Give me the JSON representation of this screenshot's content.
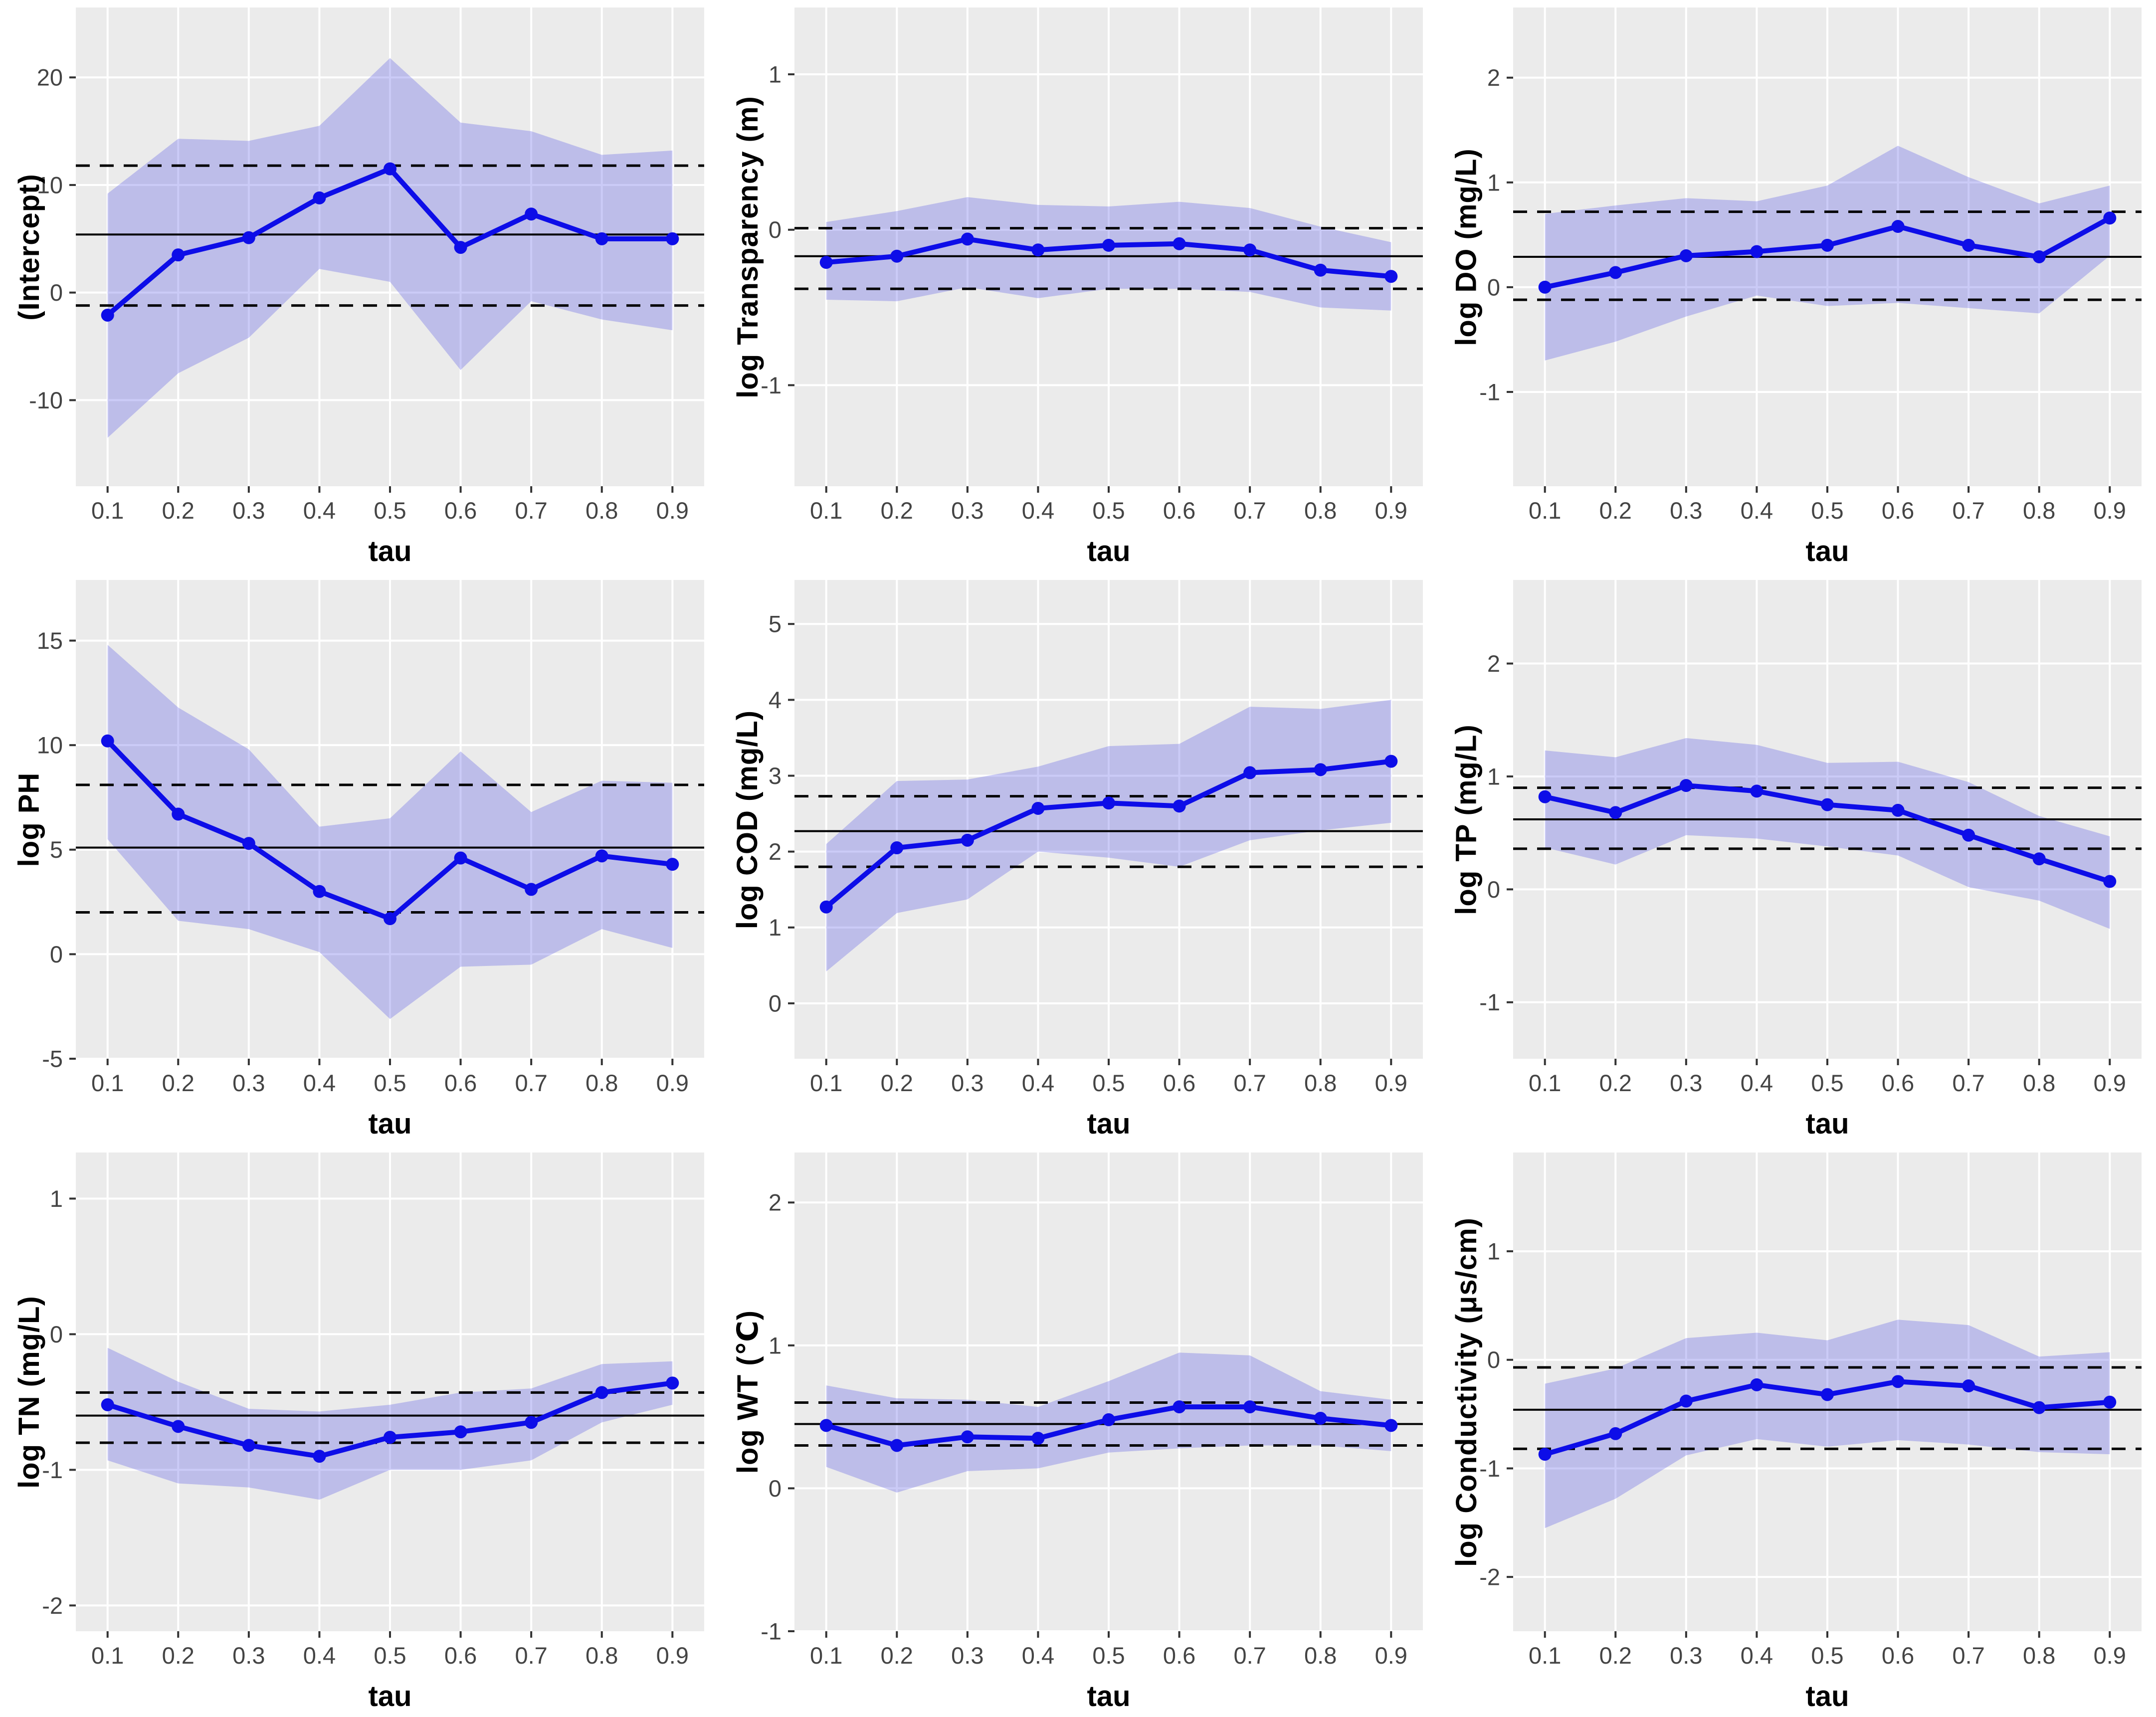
{
  "figure": {
    "description": "3x3 grid of quantile regression coefficient plots versus tau, each with a blue quantile estimate line with points, a light purple confidence band, a solid black OLS reference line and dashed black OLS confidence limits",
    "x_axis_title": "tau"
  },
  "colors": {
    "page_background": "#FFFFFF",
    "panel_background": "#EBEBEB",
    "grid_line": "#FFFFFF",
    "confidence_band": "rgba(82,82,230,0.30)",
    "quantile_line": "#0D0DE8",
    "reference_line": "#000000",
    "tick_mark": "#333333",
    "tick_label": "#444444",
    "axis_title": "#000000"
  },
  "chart_data": [
    {
      "type": "line",
      "ylabel": "(Intercept)",
      "xlabel": "tau",
      "x": [
        0.1,
        0.2,
        0.3,
        0.4,
        0.5,
        0.6,
        0.7,
        0.8,
        0.9
      ],
      "series": [
        {
          "name": "quantile-estimate",
          "values": [
            -2.1,
            3.5,
            5.1,
            8.8,
            11.5,
            4.2,
            7.3,
            5.0,
            5.0
          ]
        },
        {
          "name": "ci-upper",
          "values": [
            9.2,
            14.3,
            14.1,
            15.5,
            21.8,
            15.8,
            15.0,
            12.8,
            13.2
          ]
        },
        {
          "name": "ci-lower",
          "values": [
            -13.5,
            -7.5,
            -4.2,
            2.2,
            1.0,
            -7.2,
            -0.8,
            -2.5,
            -3.5
          ]
        }
      ],
      "ols": {
        "estimate": 5.4,
        "upper": 11.8,
        "lower": -1.2
      },
      "xticks": [
        0.1,
        0.2,
        0.3,
        0.4,
        0.5,
        0.6,
        0.7,
        0.8,
        0.9
      ],
      "yticks": [
        -10,
        0,
        10,
        20
      ],
      "xlim": [
        0.055,
        0.945
      ],
      "ylim": [
        -18,
        26.5
      ],
      "grid": "major",
      "legend": "none"
    },
    {
      "type": "line",
      "ylabel": "log Transparency (m)",
      "xlabel": "tau",
      "x": [
        0.1,
        0.2,
        0.3,
        0.4,
        0.5,
        0.6,
        0.7,
        0.8,
        0.9
      ],
      "series": [
        {
          "name": "quantile-estimate",
          "values": [
            -0.21,
            -0.17,
            -0.06,
            -0.13,
            -0.1,
            -0.09,
            -0.13,
            -0.26,
            -0.3
          ]
        },
        {
          "name": "ci-upper",
          "values": [
            0.05,
            0.12,
            0.21,
            0.16,
            0.15,
            0.18,
            0.14,
            0.02,
            -0.08
          ]
        },
        {
          "name": "ci-lower",
          "values": [
            -0.45,
            -0.46,
            -0.37,
            -0.44,
            -0.38,
            -0.38,
            -0.4,
            -0.5,
            -0.52
          ]
        }
      ],
      "ols": {
        "estimate": -0.17,
        "upper": 0.01,
        "lower": -0.38
      },
      "xticks": [
        0.1,
        0.2,
        0.3,
        0.4,
        0.5,
        0.6,
        0.7,
        0.8,
        0.9
      ],
      "yticks": [
        -1,
        0,
        1
      ],
      "xlim": [
        0.055,
        0.945
      ],
      "ylim": [
        -1.65,
        1.43
      ],
      "grid": "major",
      "legend": "none"
    },
    {
      "type": "line",
      "ylabel": "log DO (mg/L)",
      "xlabel": "tau",
      "x": [
        0.1,
        0.2,
        0.3,
        0.4,
        0.5,
        0.6,
        0.7,
        0.8,
        0.9
      ],
      "series": [
        {
          "name": "quantile-estimate",
          "values": [
            0.0,
            0.14,
            0.3,
            0.34,
            0.4,
            0.58,
            0.4,
            0.29,
            0.66
          ]
        },
        {
          "name": "ci-upper",
          "values": [
            0.7,
            0.78,
            0.85,
            0.82,
            0.97,
            1.35,
            1.05,
            0.8,
            0.97
          ]
        },
        {
          "name": "ci-lower",
          "values": [
            -0.7,
            -0.52,
            -0.28,
            -0.08,
            -0.18,
            -0.15,
            -0.2,
            -0.25,
            0.3
          ]
        }
      ],
      "ols": {
        "estimate": 0.29,
        "upper": 0.72,
        "lower": -0.12
      },
      "xticks": [
        0.1,
        0.2,
        0.3,
        0.4,
        0.5,
        0.6,
        0.7,
        0.8,
        0.9
      ],
      "yticks": [
        -1,
        0,
        1,
        2
      ],
      "xlim": [
        0.055,
        0.945
      ],
      "ylim": [
        -1.9,
        2.67
      ],
      "grid": "major",
      "legend": "none"
    },
    {
      "type": "line",
      "ylabel": "log PH",
      "xlabel": "tau",
      "x": [
        0.1,
        0.2,
        0.3,
        0.4,
        0.5,
        0.6,
        0.7,
        0.8,
        0.9
      ],
      "series": [
        {
          "name": "quantile-estimate",
          "values": [
            10.2,
            6.7,
            5.3,
            3.0,
            1.7,
            4.6,
            3.1,
            4.7,
            4.3
          ]
        },
        {
          "name": "ci-upper",
          "values": [
            14.8,
            11.8,
            9.8,
            6.1,
            6.5,
            9.7,
            6.8,
            8.3,
            8.2
          ]
        },
        {
          "name": "ci-lower",
          "values": [
            5.5,
            1.6,
            1.2,
            0.1,
            -3.1,
            -0.6,
            -0.5,
            1.2,
            0.3
          ]
        }
      ],
      "ols": {
        "estimate": 5.1,
        "upper": 8.1,
        "lower": 2.0
      },
      "xticks": [
        0.1,
        0.2,
        0.3,
        0.4,
        0.5,
        0.6,
        0.7,
        0.8,
        0.9
      ],
      "yticks": [
        -5,
        0,
        5,
        10,
        15
      ],
      "xlim": [
        0.055,
        0.945
      ],
      "ylim": [
        -5,
        17.9
      ],
      "grid": "major",
      "legend": "none"
    },
    {
      "type": "line",
      "ylabel": "log COD (mg/L)",
      "xlabel": "tau",
      "x": [
        0.1,
        0.2,
        0.3,
        0.4,
        0.5,
        0.6,
        0.7,
        0.8,
        0.9
      ],
      "series": [
        {
          "name": "quantile-estimate",
          "values": [
            1.27,
            2.05,
            2.15,
            2.57,
            2.64,
            2.6,
            3.04,
            3.08,
            3.19
          ]
        },
        {
          "name": "ci-upper",
          "values": [
            2.1,
            2.93,
            2.95,
            3.12,
            3.39,
            3.42,
            3.91,
            3.88,
            4.0
          ]
        },
        {
          "name": "ci-lower",
          "values": [
            0.42,
            1.19,
            1.37,
            2.0,
            1.92,
            1.8,
            2.15,
            2.28,
            2.38
          ]
        }
      ],
      "ols": {
        "estimate": 2.27,
        "upper": 2.73,
        "lower": 1.8
      },
      "xticks": [
        0.1,
        0.2,
        0.3,
        0.4,
        0.5,
        0.6,
        0.7,
        0.8,
        0.9
      ],
      "yticks": [
        0,
        1,
        2,
        3,
        4,
        5
      ],
      "xlim": [
        0.055,
        0.945
      ],
      "ylim": [
        -0.73,
        5.58
      ],
      "grid": "major",
      "legend": "none"
    },
    {
      "type": "line",
      "ylabel": "log TP (mg/L)",
      "xlabel": "tau",
      "x": [
        0.1,
        0.2,
        0.3,
        0.4,
        0.5,
        0.6,
        0.7,
        0.8,
        0.9
      ],
      "series": [
        {
          "name": "quantile-estimate",
          "values": [
            0.82,
            0.68,
            0.92,
            0.87,
            0.75,
            0.7,
            0.48,
            0.27,
            0.07
          ]
        },
        {
          "name": "ci-upper",
          "values": [
            1.23,
            1.17,
            1.34,
            1.28,
            1.12,
            1.13,
            0.95,
            0.65,
            0.47
          ]
        },
        {
          "name": "ci-lower",
          "values": [
            0.37,
            0.22,
            0.48,
            0.45,
            0.38,
            0.3,
            0.02,
            -0.1,
            -0.35
          ]
        }
      ],
      "ols": {
        "estimate": 0.62,
        "upper": 0.9,
        "lower": 0.36
      },
      "xticks": [
        0.1,
        0.2,
        0.3,
        0.4,
        0.5,
        0.6,
        0.7,
        0.8,
        0.9
      ],
      "yticks": [
        -1,
        0,
        1,
        2
      ],
      "xlim": [
        0.055,
        0.945
      ],
      "ylim": [
        -1.5,
        2.74
      ],
      "grid": "major",
      "legend": "none"
    },
    {
      "type": "line",
      "ylabel": "log TN (mg/L)",
      "xlabel": "tau",
      "x": [
        0.1,
        0.2,
        0.3,
        0.4,
        0.5,
        0.6,
        0.7,
        0.8,
        0.9
      ],
      "series": [
        {
          "name": "quantile-estimate",
          "values": [
            -0.52,
            -0.68,
            -0.82,
            -0.9,
            -0.76,
            -0.72,
            -0.65,
            -0.43,
            -0.36
          ]
        },
        {
          "name": "ci-upper",
          "values": [
            -0.1,
            -0.35,
            -0.55,
            -0.57,
            -0.52,
            -0.43,
            -0.4,
            -0.22,
            -0.2
          ]
        },
        {
          "name": "ci-lower",
          "values": [
            -0.93,
            -1.1,
            -1.13,
            -1.22,
            -1.0,
            -1.0,
            -0.93,
            -0.65,
            -0.52
          ]
        }
      ],
      "ols": {
        "estimate": -0.6,
        "upper": -0.43,
        "lower": -0.8
      },
      "xticks": [
        0.1,
        0.2,
        0.3,
        0.4,
        0.5,
        0.6,
        0.7,
        0.8,
        0.9
      ],
      "yticks": [
        -2,
        -1,
        0,
        1
      ],
      "xlim": [
        0.055,
        0.945
      ],
      "ylim": [
        -2.19,
        1.34
      ],
      "grid": "major",
      "legend": "none"
    },
    {
      "type": "line",
      "ylabel": "log WT (℃)",
      "xlabel": "tau",
      "x": [
        0.1,
        0.2,
        0.3,
        0.4,
        0.5,
        0.6,
        0.7,
        0.8,
        0.9
      ],
      "series": [
        {
          "name": "quantile-estimate",
          "values": [
            0.44,
            0.3,
            0.36,
            0.35,
            0.48,
            0.57,
            0.57,
            0.49,
            0.44
          ]
        },
        {
          "name": "ci-upper",
          "values": [
            0.72,
            0.63,
            0.62,
            0.57,
            0.75,
            0.95,
            0.93,
            0.68,
            0.62
          ]
        },
        {
          "name": "ci-lower",
          "values": [
            0.15,
            -0.03,
            0.12,
            0.14,
            0.25,
            0.28,
            0.3,
            0.3,
            0.26
          ]
        }
      ],
      "ols": {
        "estimate": 0.45,
        "upper": 0.6,
        "lower": 0.3
      },
      "xticks": [
        0.1,
        0.2,
        0.3,
        0.4,
        0.5,
        0.6,
        0.7,
        0.8,
        0.9
      ],
      "yticks": [
        -1,
        0,
        1,
        2
      ],
      "xlim": [
        0.055,
        0.945
      ],
      "ylim": [
        -1.0,
        2.35
      ],
      "grid": "major",
      "legend": "none"
    },
    {
      "type": "line",
      "ylabel": "log Conductivity (μs/cm)",
      "xlabel": "tau",
      "x": [
        0.1,
        0.2,
        0.3,
        0.4,
        0.5,
        0.6,
        0.7,
        0.8,
        0.9
      ],
      "series": [
        {
          "name": "quantile-estimate",
          "values": [
            -0.87,
            -0.68,
            -0.38,
            -0.23,
            -0.32,
            -0.2,
            -0.24,
            -0.44,
            -0.39
          ]
        },
        {
          "name": "ci-upper",
          "values": [
            -0.22,
            -0.08,
            0.2,
            0.25,
            0.18,
            0.37,
            0.32,
            0.03,
            0.07
          ]
        },
        {
          "name": "ci-lower",
          "values": [
            -1.55,
            -1.28,
            -0.88,
            -0.73,
            -0.8,
            -0.74,
            -0.78,
            -0.85,
            -0.87
          ]
        }
      ],
      "ols": {
        "estimate": -0.46,
        "upper": -0.07,
        "lower": -0.82
      },
      "xticks": [
        0.1,
        0.2,
        0.3,
        0.4,
        0.5,
        0.6,
        0.7,
        0.8,
        0.9
      ],
      "yticks": [
        -2,
        -1,
        0,
        1
      ],
      "xlim": [
        0.055,
        0.945
      ],
      "ylim": [
        -2.5,
        1.91
      ],
      "grid": "major",
      "legend": "none"
    }
  ]
}
